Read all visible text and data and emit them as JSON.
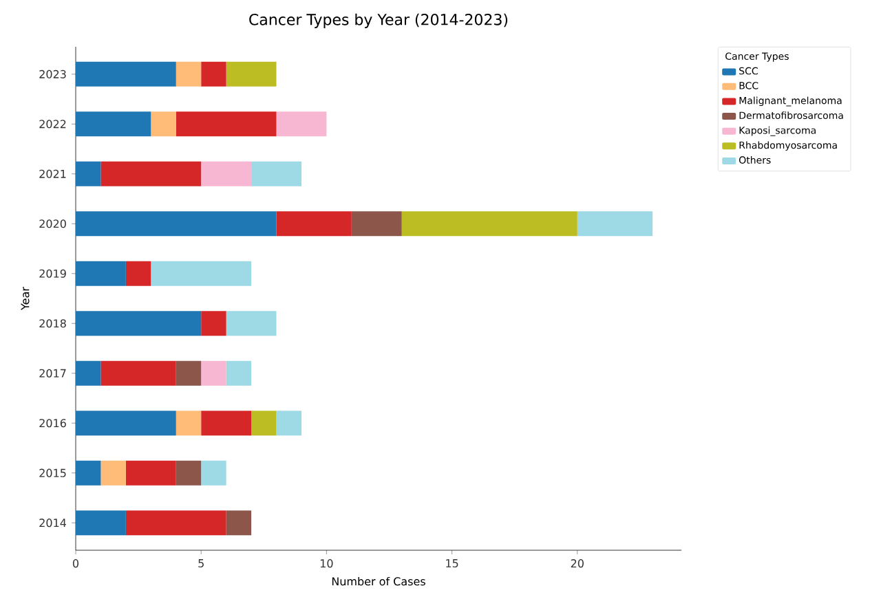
{
  "chart_data": {
    "type": "bar",
    "orientation": "horizontal",
    "stacked": true,
    "title": "Cancer Types by Year (2014-2023)",
    "xlabel": "Number of Cases",
    "ylabel": "Year",
    "legend_title": "Cancer Types",
    "legend": "top right",
    "categories": [
      "2023",
      "2022",
      "2021",
      "2020",
      "2019",
      "2018",
      "2017",
      "2016",
      "2015",
      "2014"
    ],
    "xlim": [
      0,
      24.15
    ],
    "xticks": [
      0,
      5,
      10,
      15,
      20
    ],
    "series": [
      {
        "name": "SCC",
        "color": "#1f77b4",
        "values": [
          4,
          3,
          1,
          8,
          2,
          5,
          1,
          4,
          1,
          2
        ]
      },
      {
        "name": "BCC",
        "color": "#ffbb78",
        "values": [
          1,
          1,
          0,
          0,
          0,
          0,
          0,
          1,
          1,
          0
        ]
      },
      {
        "name": "Malignant_melanoma",
        "color": "#d62728",
        "values": [
          1,
          4,
          4,
          3,
          1,
          1,
          3,
          2,
          2,
          4
        ]
      },
      {
        "name": "Dermatofibrosarcoma",
        "color": "#8c564b",
        "values": [
          0,
          0,
          0,
          2,
          0,
          0,
          1,
          0,
          1,
          1
        ]
      },
      {
        "name": "Kaposi_sarcoma",
        "color": "#f7b6d2",
        "values": [
          0,
          2,
          2,
          0,
          0,
          0,
          1,
          0,
          0,
          0
        ]
      },
      {
        "name": "Rhabdomyosarcoma",
        "color": "#bcbd22",
        "values": [
          2,
          0,
          0,
          7,
          0,
          0,
          0,
          1,
          0,
          0
        ]
      },
      {
        "name": "Others",
        "color": "#9edae5",
        "values": [
          0,
          0,
          2,
          3,
          4,
          2,
          1,
          1,
          1,
          0
        ]
      }
    ]
  }
}
